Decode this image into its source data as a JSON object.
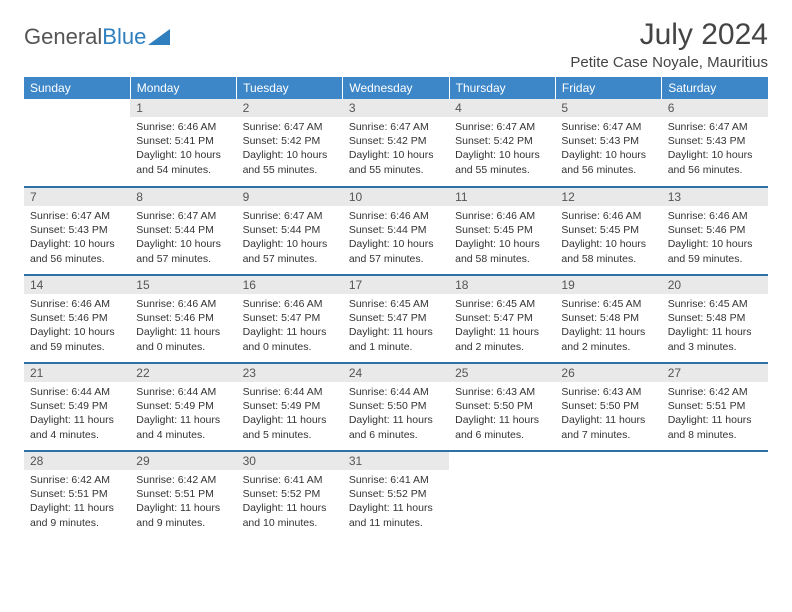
{
  "logo": {
    "part1": "General",
    "part2": "Blue"
  },
  "title": "July 2024",
  "location": "Petite Case Noyale, Mauritius",
  "colors": {
    "header_bg": "#3d87c9",
    "header_text": "#ffffff",
    "daynum_bg": "#e9e9e9",
    "row_divider": "#2f6fa8",
    "logo_gray": "#555555",
    "logo_blue": "#2f7fbf"
  },
  "weekdays": [
    "Sunday",
    "Monday",
    "Tuesday",
    "Wednesday",
    "Thursday",
    "Friday",
    "Saturday"
  ],
  "weeks": [
    [
      {
        "day": "",
        "sunrise": "",
        "sunset": "",
        "daylight1": "",
        "daylight2": ""
      },
      {
        "day": "1",
        "sunrise": "Sunrise: 6:46 AM",
        "sunset": "Sunset: 5:41 PM",
        "daylight1": "Daylight: 10 hours",
        "daylight2": "and 54 minutes."
      },
      {
        "day": "2",
        "sunrise": "Sunrise: 6:47 AM",
        "sunset": "Sunset: 5:42 PM",
        "daylight1": "Daylight: 10 hours",
        "daylight2": "and 55 minutes."
      },
      {
        "day": "3",
        "sunrise": "Sunrise: 6:47 AM",
        "sunset": "Sunset: 5:42 PM",
        "daylight1": "Daylight: 10 hours",
        "daylight2": "and 55 minutes."
      },
      {
        "day": "4",
        "sunrise": "Sunrise: 6:47 AM",
        "sunset": "Sunset: 5:42 PM",
        "daylight1": "Daylight: 10 hours",
        "daylight2": "and 55 minutes."
      },
      {
        "day": "5",
        "sunrise": "Sunrise: 6:47 AM",
        "sunset": "Sunset: 5:43 PM",
        "daylight1": "Daylight: 10 hours",
        "daylight2": "and 56 minutes."
      },
      {
        "day": "6",
        "sunrise": "Sunrise: 6:47 AM",
        "sunset": "Sunset: 5:43 PM",
        "daylight1": "Daylight: 10 hours",
        "daylight2": "and 56 minutes."
      }
    ],
    [
      {
        "day": "7",
        "sunrise": "Sunrise: 6:47 AM",
        "sunset": "Sunset: 5:43 PM",
        "daylight1": "Daylight: 10 hours",
        "daylight2": "and 56 minutes."
      },
      {
        "day": "8",
        "sunrise": "Sunrise: 6:47 AM",
        "sunset": "Sunset: 5:44 PM",
        "daylight1": "Daylight: 10 hours",
        "daylight2": "and 57 minutes."
      },
      {
        "day": "9",
        "sunrise": "Sunrise: 6:47 AM",
        "sunset": "Sunset: 5:44 PM",
        "daylight1": "Daylight: 10 hours",
        "daylight2": "and 57 minutes."
      },
      {
        "day": "10",
        "sunrise": "Sunrise: 6:46 AM",
        "sunset": "Sunset: 5:44 PM",
        "daylight1": "Daylight: 10 hours",
        "daylight2": "and 57 minutes."
      },
      {
        "day": "11",
        "sunrise": "Sunrise: 6:46 AM",
        "sunset": "Sunset: 5:45 PM",
        "daylight1": "Daylight: 10 hours",
        "daylight2": "and 58 minutes."
      },
      {
        "day": "12",
        "sunrise": "Sunrise: 6:46 AM",
        "sunset": "Sunset: 5:45 PM",
        "daylight1": "Daylight: 10 hours",
        "daylight2": "and 58 minutes."
      },
      {
        "day": "13",
        "sunrise": "Sunrise: 6:46 AM",
        "sunset": "Sunset: 5:46 PM",
        "daylight1": "Daylight: 10 hours",
        "daylight2": "and 59 minutes."
      }
    ],
    [
      {
        "day": "14",
        "sunrise": "Sunrise: 6:46 AM",
        "sunset": "Sunset: 5:46 PM",
        "daylight1": "Daylight: 10 hours",
        "daylight2": "and 59 minutes."
      },
      {
        "day": "15",
        "sunrise": "Sunrise: 6:46 AM",
        "sunset": "Sunset: 5:46 PM",
        "daylight1": "Daylight: 11 hours",
        "daylight2": "and 0 minutes."
      },
      {
        "day": "16",
        "sunrise": "Sunrise: 6:46 AM",
        "sunset": "Sunset: 5:47 PM",
        "daylight1": "Daylight: 11 hours",
        "daylight2": "and 0 minutes."
      },
      {
        "day": "17",
        "sunrise": "Sunrise: 6:45 AM",
        "sunset": "Sunset: 5:47 PM",
        "daylight1": "Daylight: 11 hours",
        "daylight2": "and 1 minute."
      },
      {
        "day": "18",
        "sunrise": "Sunrise: 6:45 AM",
        "sunset": "Sunset: 5:47 PM",
        "daylight1": "Daylight: 11 hours",
        "daylight2": "and 2 minutes."
      },
      {
        "day": "19",
        "sunrise": "Sunrise: 6:45 AM",
        "sunset": "Sunset: 5:48 PM",
        "daylight1": "Daylight: 11 hours",
        "daylight2": "and 2 minutes."
      },
      {
        "day": "20",
        "sunrise": "Sunrise: 6:45 AM",
        "sunset": "Sunset: 5:48 PM",
        "daylight1": "Daylight: 11 hours",
        "daylight2": "and 3 minutes."
      }
    ],
    [
      {
        "day": "21",
        "sunrise": "Sunrise: 6:44 AM",
        "sunset": "Sunset: 5:49 PM",
        "daylight1": "Daylight: 11 hours",
        "daylight2": "and 4 minutes."
      },
      {
        "day": "22",
        "sunrise": "Sunrise: 6:44 AM",
        "sunset": "Sunset: 5:49 PM",
        "daylight1": "Daylight: 11 hours",
        "daylight2": "and 4 minutes."
      },
      {
        "day": "23",
        "sunrise": "Sunrise: 6:44 AM",
        "sunset": "Sunset: 5:49 PM",
        "daylight1": "Daylight: 11 hours",
        "daylight2": "and 5 minutes."
      },
      {
        "day": "24",
        "sunrise": "Sunrise: 6:44 AM",
        "sunset": "Sunset: 5:50 PM",
        "daylight1": "Daylight: 11 hours",
        "daylight2": "and 6 minutes."
      },
      {
        "day": "25",
        "sunrise": "Sunrise: 6:43 AM",
        "sunset": "Sunset: 5:50 PM",
        "daylight1": "Daylight: 11 hours",
        "daylight2": "and 6 minutes."
      },
      {
        "day": "26",
        "sunrise": "Sunrise: 6:43 AM",
        "sunset": "Sunset: 5:50 PM",
        "daylight1": "Daylight: 11 hours",
        "daylight2": "and 7 minutes."
      },
      {
        "day": "27",
        "sunrise": "Sunrise: 6:42 AM",
        "sunset": "Sunset: 5:51 PM",
        "daylight1": "Daylight: 11 hours",
        "daylight2": "and 8 minutes."
      }
    ],
    [
      {
        "day": "28",
        "sunrise": "Sunrise: 6:42 AM",
        "sunset": "Sunset: 5:51 PM",
        "daylight1": "Daylight: 11 hours",
        "daylight2": "and 9 minutes."
      },
      {
        "day": "29",
        "sunrise": "Sunrise: 6:42 AM",
        "sunset": "Sunset: 5:51 PM",
        "daylight1": "Daylight: 11 hours",
        "daylight2": "and 9 minutes."
      },
      {
        "day": "30",
        "sunrise": "Sunrise: 6:41 AM",
        "sunset": "Sunset: 5:52 PM",
        "daylight1": "Daylight: 11 hours",
        "daylight2": "and 10 minutes."
      },
      {
        "day": "31",
        "sunrise": "Sunrise: 6:41 AM",
        "sunset": "Sunset: 5:52 PM",
        "daylight1": "Daylight: 11 hours",
        "daylight2": "and 11 minutes."
      },
      {
        "day": "",
        "sunrise": "",
        "sunset": "",
        "daylight1": "",
        "daylight2": ""
      },
      {
        "day": "",
        "sunrise": "",
        "sunset": "",
        "daylight1": "",
        "daylight2": ""
      },
      {
        "day": "",
        "sunrise": "",
        "sunset": "",
        "daylight1": "",
        "daylight2": ""
      }
    ]
  ]
}
